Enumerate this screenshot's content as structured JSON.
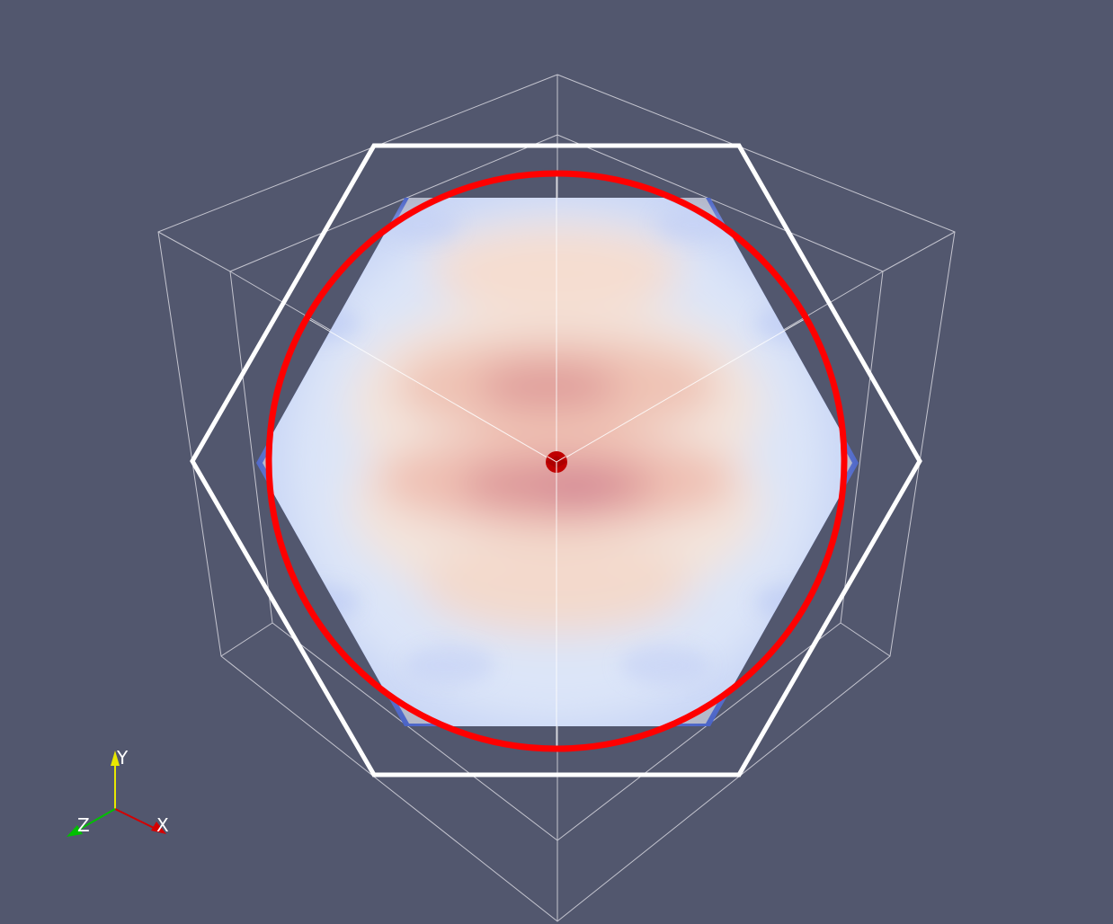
{
  "view": {
    "background": "#52576e",
    "outline_color": "#ffffff",
    "contour_color": "#ff0000",
    "center_marker_color": "#cc0000"
  },
  "colormap": {
    "name": "coolwarm",
    "low": "#3b4cc0",
    "mid": "#dde6f7",
    "high": "#cc6677"
  },
  "orientation_axes": {
    "x_label": "X",
    "y_label": "Y",
    "z_label": "Z",
    "x_color": "#d40000",
    "y_color": "#e8e800",
    "z_color": "#00c000"
  }
}
